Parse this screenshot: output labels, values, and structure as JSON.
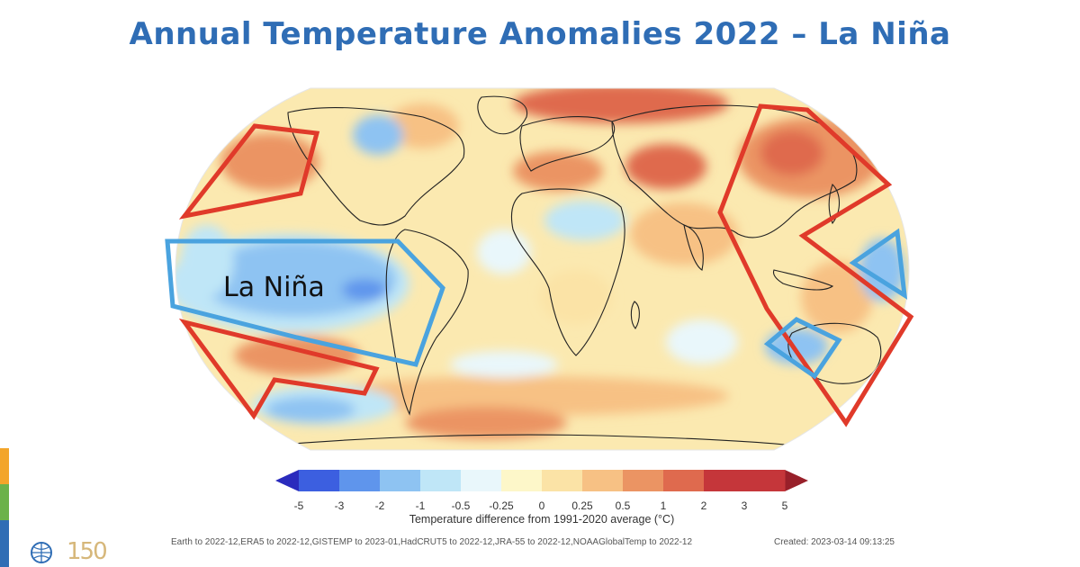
{
  "title": "Annual Temperature Anomalies 2022 – La Niña",
  "annotations": {
    "la_nina_label": "La Niña",
    "cold_region_color": "#4aa3df",
    "warm_region_color": "#e03a2a"
  },
  "colorbar": {
    "ticks": [
      "-5",
      "-3",
      "-2",
      "-1",
      "-0.5",
      "-0.25",
      "0",
      "0.25",
      "0.5",
      "1",
      "2",
      "3",
      "5"
    ],
    "colors": [
      "#2a2bbd",
      "#3c5fe0",
      "#5f95ec",
      "#8ec3f2",
      "#bfe6f7",
      "#e9f7fb",
      "#fdf7c9",
      "#fbe3a6",
      "#f7c184",
      "#eb9463",
      "#df6a4e",
      "#c5363a",
      "#98202a"
    ],
    "caption": "Temperature difference from 1991-2020 average (°C)"
  },
  "footer": {
    "sources": "Earth to 2022-12,ERA5 to 2022-12,GISTEMP to 2023-01,HadCRUT5 to 2022-12,JRA-55 to 2022-12,NOAAGlobalTemp to 2022-12",
    "created": "Created: 2023-03-14 09:13:25",
    "logo_text": "150"
  },
  "side_strip_colors": [
    "#f3a52a",
    "#6cb24a",
    "#2f6db5"
  ]
}
